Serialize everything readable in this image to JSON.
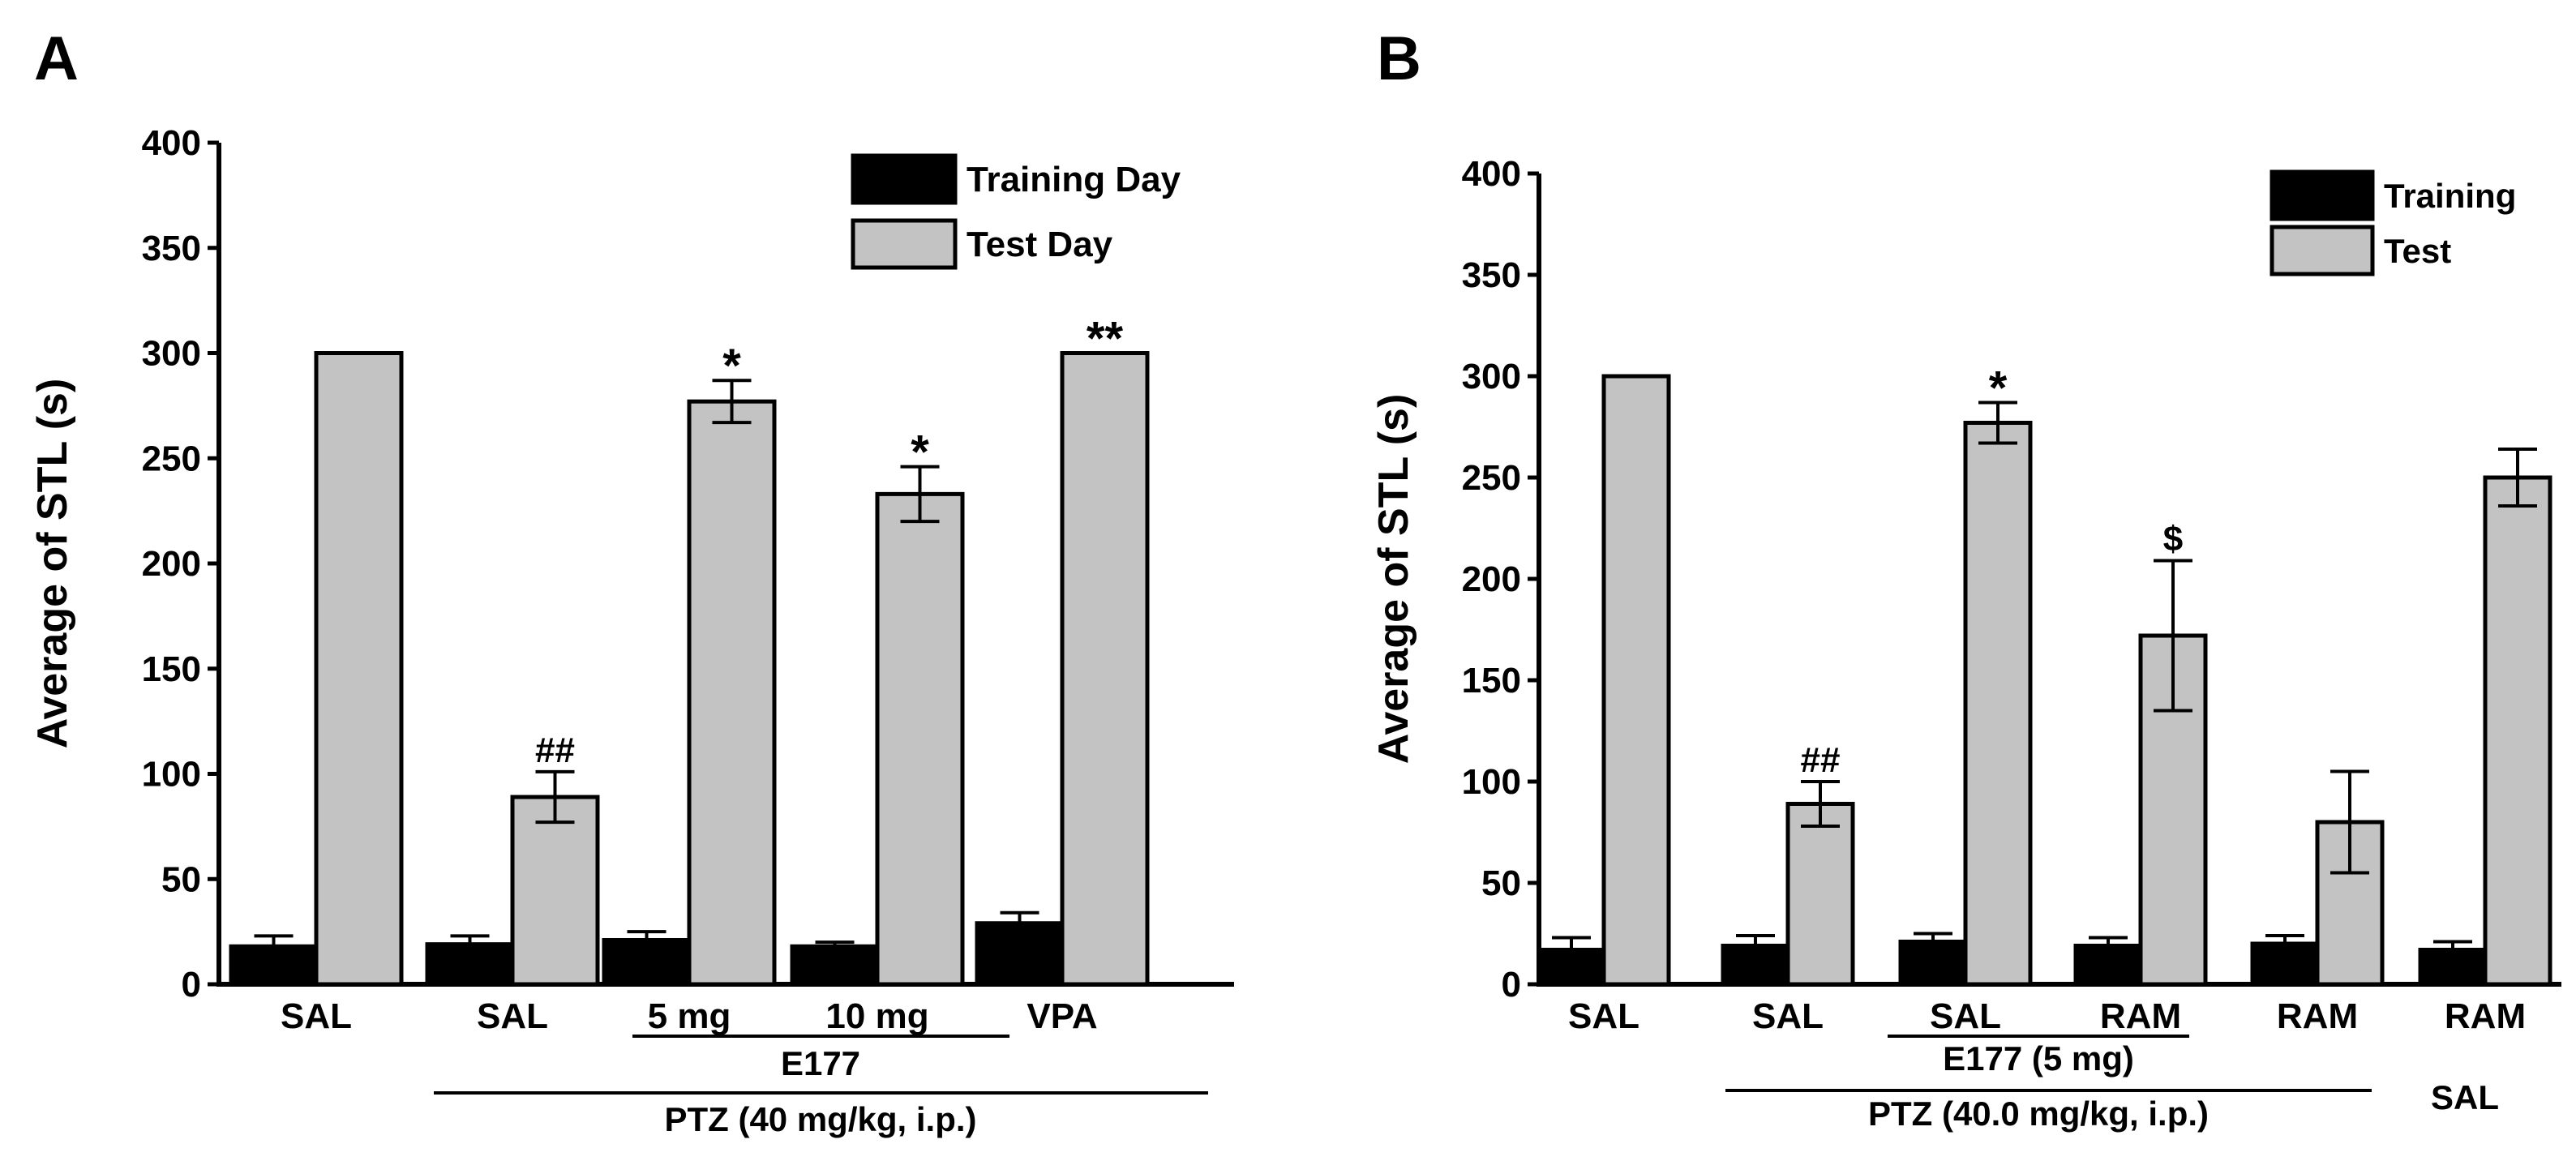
{
  "chart_data": [
    {
      "panel_label": "A",
      "type": "bar",
      "ylabel": "Average of STL (s)",
      "ylim": [
        0,
        400
      ],
      "yticks": [
        "0",
        "50",
        "100",
        "150",
        "200",
        "250",
        "300",
        "350",
        "400"
      ],
      "categories": [
        "SAL",
        "SAL",
        "5 mg",
        "10 mg",
        "VPA"
      ],
      "legend": {
        "placement": "top-right",
        "entries": [
          "Training Day",
          "Test Day"
        ]
      },
      "series": [
        {
          "name": "Training Day",
          "color": "#000000",
          "values": [
            18,
            19,
            21,
            18,
            29
          ],
          "errors": [
            5,
            4,
            4,
            2,
            5
          ]
        },
        {
          "name": "Test Day",
          "color": "#c3c3c3",
          "values": [
            300,
            89,
            277,
            233,
            300
          ],
          "errors": [
            0,
            12,
            10,
            13,
            0
          ]
        }
      ],
      "annotations": [
        {
          "category_index": 1,
          "text": "##"
        },
        {
          "category_index": 2,
          "text": "*"
        },
        {
          "category_index": 3,
          "text": "*"
        },
        {
          "category_index": 4,
          "text": "**"
        }
      ],
      "group_labels": [
        {
          "text": "E177",
          "from": 2,
          "to": 3
        },
        {
          "text": "PTZ (40 mg/kg, i.p.)",
          "from": 1,
          "to": 4
        }
      ]
    },
    {
      "panel_label": "B",
      "type": "bar",
      "ylabel": "Average of STL (s)",
      "ylim": [
        0,
        400
      ],
      "yticks": [
        "0",
        "50",
        "100",
        "150",
        "200",
        "250",
        "300",
        "350",
        "400"
      ],
      "categories": [
        "SAL",
        "SAL",
        "SAL",
        "RAM",
        "RAM",
        "RAM"
      ],
      "legend": {
        "placement": "top-right",
        "entries": [
          "Training",
          "Test"
        ]
      },
      "series": [
        {
          "name": "Training",
          "color": "#000000",
          "values": [
            17,
            19,
            21,
            19,
            20,
            17
          ],
          "errors": [
            6,
            5,
            4,
            4,
            4,
            4
          ]
        },
        {
          "name": "Test",
          "color": "#c3c3c3",
          "values": [
            300,
            89,
            277,
            172,
            80,
            250
          ],
          "errors": [
            0,
            11,
            10,
            37,
            25,
            14
          ]
        }
      ],
      "annotations": [
        {
          "category_index": 1,
          "text": "##"
        },
        {
          "category_index": 2,
          "text": "*"
        },
        {
          "category_index": 3,
          "text": "$"
        }
      ],
      "group_labels": [
        {
          "text": "E177 (5 mg)",
          "from": 2,
          "to": 3
        },
        {
          "text": "PTZ (40.0 mg/kg, i.p.)",
          "from": 1,
          "to": 4
        },
        {
          "text": "SAL",
          "from": 5,
          "to": 5,
          "line": false
        }
      ]
    }
  ]
}
